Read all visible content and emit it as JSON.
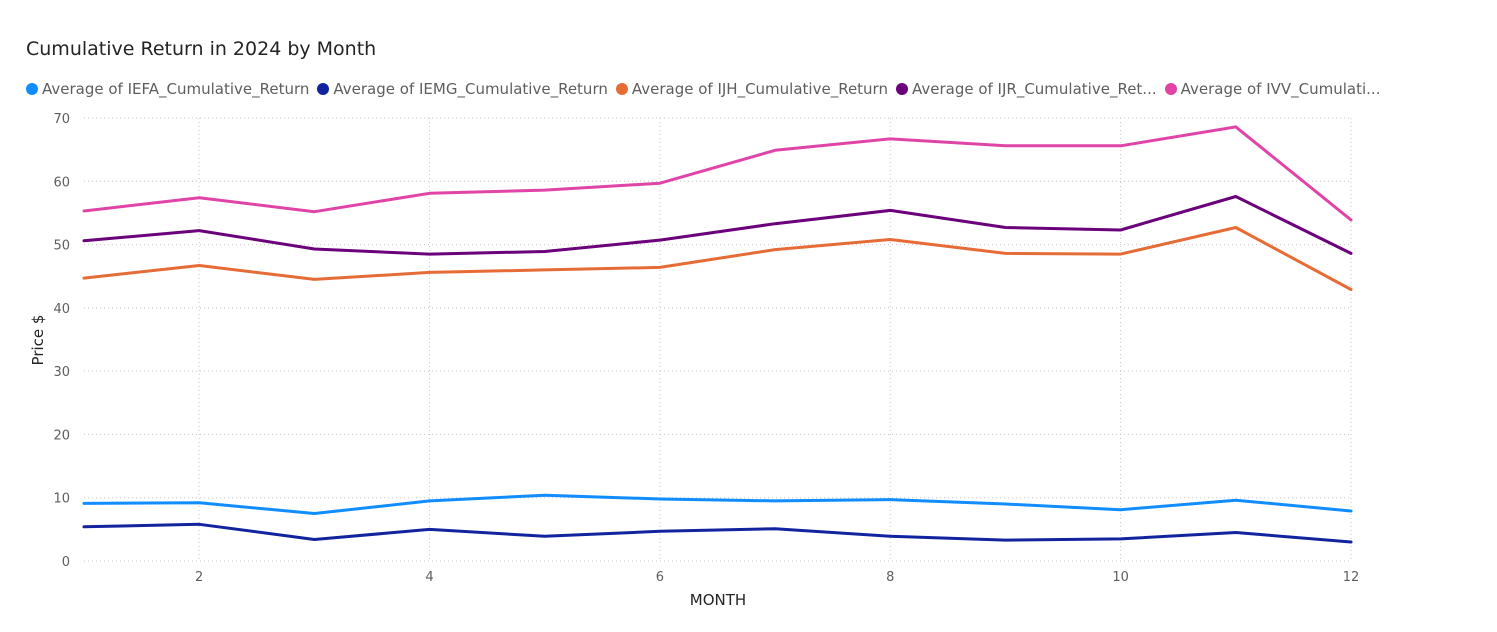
{
  "chart_data": {
    "type": "line",
    "title": "Cumulative Return in 2024 by Month",
    "xlabel": "MONTH",
    "ylabel": "Price $",
    "x": [
      1,
      2,
      3,
      4,
      5,
      6,
      7,
      8,
      9,
      10,
      11,
      12
    ],
    "xticks": [
      2,
      4,
      6,
      8,
      10,
      12
    ],
    "xlim": [
      1,
      12
    ],
    "yticks": [
      0,
      10,
      20,
      30,
      40,
      50,
      60,
      70
    ],
    "ylim": [
      0,
      70
    ],
    "grid": true,
    "legend_position": "top-left",
    "series": [
      {
        "name": "Average of IEFA_Cumulative_Return",
        "legend_label": "Average of IEFA_Cumulative_Return",
        "color": "#118DFF",
        "values": [
          9.1,
          9.2,
          7.5,
          9.5,
          10.4,
          9.8,
          9.5,
          9.7,
          9.0,
          8.1,
          9.6,
          7.9
        ]
      },
      {
        "name": "Average of IEMG_Cumulative_Return",
        "legend_label": "Average of IEMG_Cumulative_Return",
        "color": "#12239E",
        "values": [
          5.4,
          5.8,
          3.4,
          5.0,
          3.9,
          4.7,
          5.1,
          3.9,
          3.3,
          3.5,
          4.5,
          3.0
        ]
      },
      {
        "name": "Average of IJH_Cumulative_Return",
        "legend_label": "Average of IJH_Cumulative_Return",
        "color": "#E66C37",
        "values": [
          44.7,
          46.7,
          44.5,
          45.6,
          46.0,
          46.4,
          49.2,
          50.8,
          48.6,
          48.5,
          52.7,
          42.9
        ]
      },
      {
        "name": "Average of IJR_Cumulative_Return",
        "legend_label": "Average of IJR_Cumulative_Ret...",
        "color": "#6B007B",
        "values": [
          50.6,
          52.2,
          49.3,
          48.5,
          48.9,
          50.7,
          53.3,
          55.4,
          52.7,
          52.3,
          57.6,
          48.6
        ]
      },
      {
        "name": "Average of IVV_Cumulative_Return",
        "legend_label": "Average of IVV_Cumulati...",
        "color": "#E044A7",
        "values": [
          55.3,
          57.4,
          55.2,
          58.1,
          58.6,
          59.7,
          64.9,
          66.7,
          65.6,
          65.6,
          68.6,
          53.9
        ]
      }
    ]
  }
}
